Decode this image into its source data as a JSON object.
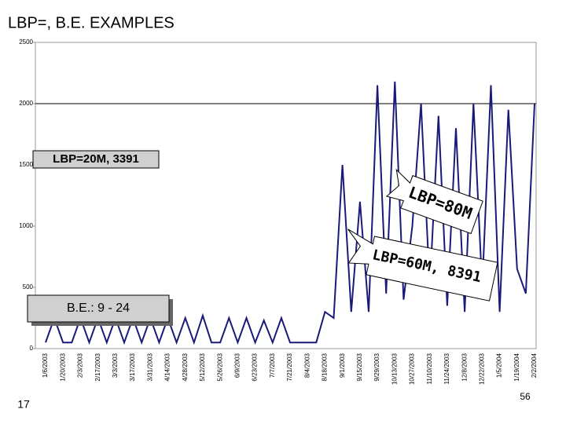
{
  "slide": {
    "title": "LBP=, B.E. EXAMPLES",
    "page_number": "17",
    "footer_number": "56"
  },
  "annotations": {
    "box1": "LBP=20M, 3391",
    "callout1": "LBP=80M",
    "callout2": "LBP=60M, 8391",
    "box2": "B.E.: 9 - 24"
  },
  "chart_data": {
    "type": "line",
    "categories": [
      "1/6/2003",
      null,
      "1/20/2003",
      null,
      "2/3/2003",
      null,
      "2/17/2003",
      null,
      "3/3/2003",
      null,
      "3/17/2003",
      null,
      "3/31/2003",
      null,
      "4/14/2003",
      null,
      "4/28/2003",
      null,
      "5/12/2003",
      null,
      "5/26/2003",
      null,
      "6/9/2003",
      null,
      "6/23/2003",
      null,
      "7/7/2003",
      null,
      "7/21/2003",
      null,
      "8/4/2003",
      null,
      "8/18/2003",
      null,
      "9/1/2003",
      null,
      "9/15/2003",
      null,
      "9/29/2003",
      null,
      "10/13/2003",
      null,
      "10/27/2003",
      null,
      "11/10/2003",
      null,
      "11/24/2003",
      null,
      "12/8/2003",
      null,
      "12/22/2003",
      null,
      "1/5/2004",
      null,
      "1/19/2004",
      null,
      "2/2/2004"
    ],
    "values": [
      50,
      250,
      50,
      50,
      250,
      50,
      250,
      50,
      250,
      50,
      250,
      50,
      250,
      50,
      250,
      50,
      250,
      50,
      270,
      50,
      50,
      250,
      50,
      250,
      50,
      230,
      50,
      250,
      50,
      50,
      50,
      50,
      300,
      250,
      1500,
      300,
      1200,
      300,
      2150,
      450,
      2180,
      400,
      1000,
      2000,
      500,
      1900,
      350,
      1800,
      300,
      2000,
      500,
      2150,
      300,
      1950,
      650,
      450,
      2000
    ],
    "color": "#1a1a7a",
    "ylim": [
      0,
      2500
    ],
    "yticks": [
      0,
      500,
      1000,
      1500,
      2000,
      2500
    ],
    "reference_line": 2000
  }
}
